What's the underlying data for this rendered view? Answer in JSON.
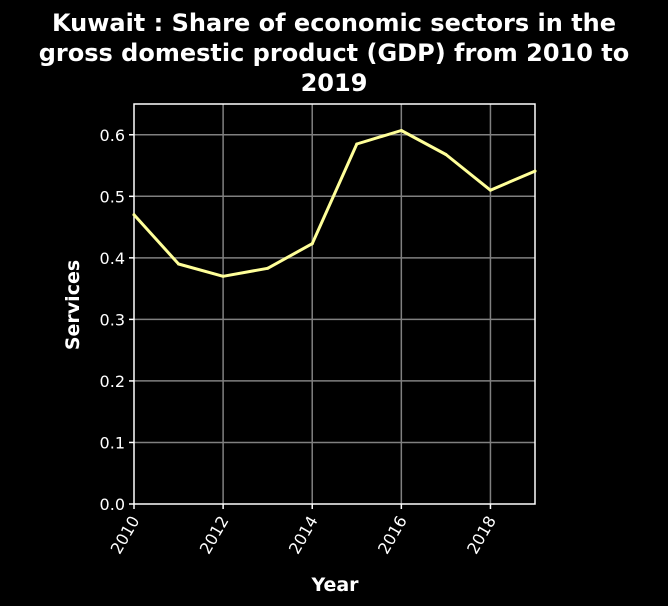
{
  "chart_data": {
    "type": "line",
    "title_lines": [
      "Kuwait : Share of economic sectors in the",
      "gross domestic product (GDP) from 2010 to",
      "2019"
    ],
    "xlabel": "Year",
    "ylabel": "Services",
    "x": [
      2010,
      2011,
      2012,
      2013,
      2014,
      2015,
      2016,
      2017,
      2018,
      2019
    ],
    "series": [
      {
        "values": [
          0.47,
          0.39,
          0.37,
          0.383,
          0.423,
          0.585,
          0.607,
          0.568,
          0.51,
          0.541
        ]
      }
    ],
    "xlim": [
      2010,
      2019
    ],
    "ylim": [
      0,
      0.65
    ],
    "x_ticks": [
      "2010",
      "2012",
      "2014",
      "2016",
      "2018"
    ],
    "y_ticks": [
      "0.0",
      "0.1",
      "0.2",
      "0.3",
      "0.4",
      "0.5",
      "0.6"
    ],
    "grid": true,
    "colors": {
      "background": "#000000",
      "plot_border": "#ffffff",
      "grid": "#808080",
      "line": "#ffff99",
      "text": "#ffffff"
    }
  }
}
